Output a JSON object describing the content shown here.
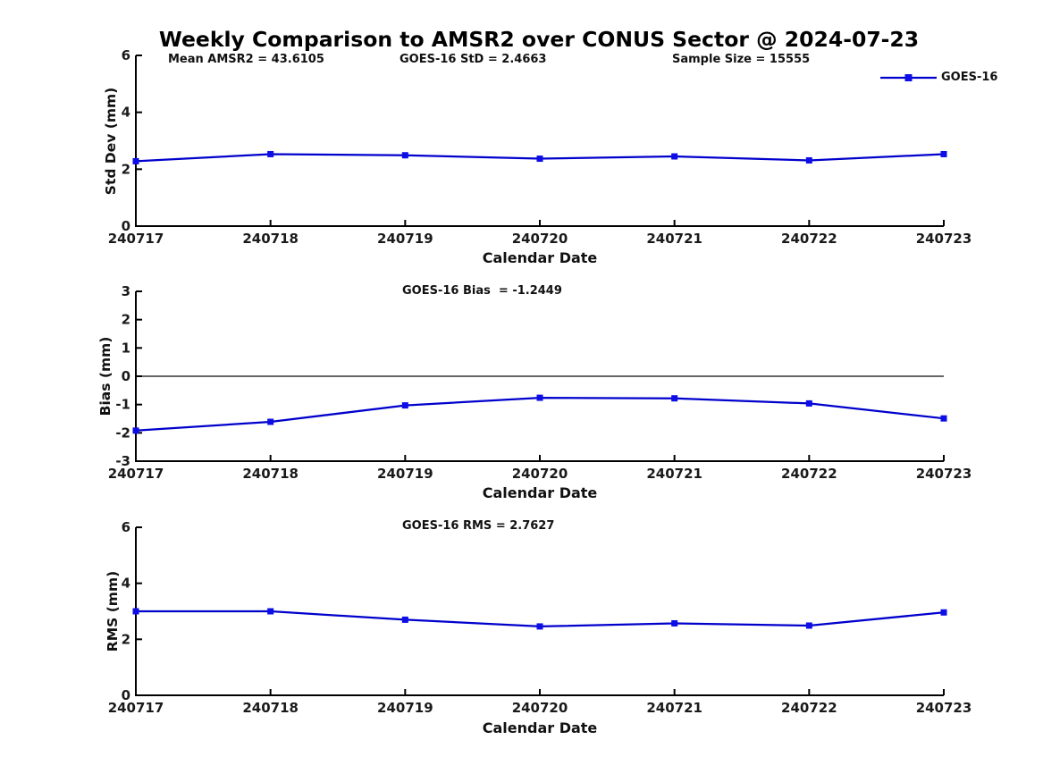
{
  "title": "Weekly Comparison to AMSR2 over CONUS Sector @ 2024-07-23",
  "legend": {
    "label": "GOES-16",
    "position": "top-right"
  },
  "colors": {
    "line": "#0000cc",
    "marker": "#0d0de8",
    "axis": "#000000",
    "zero_line": "#666666",
    "text": "#1a1a1a",
    "background": "#ffffff"
  },
  "chart_data": [
    {
      "type": "line",
      "name": "std-dev-subplot",
      "ylabel": "Std Dev (mm)",
      "xlabel": "Calendar Date",
      "ylim": [
        0,
        6
      ],
      "yticks": [
        0,
        2,
        4,
        6
      ],
      "grid": false,
      "categories": [
        "240717",
        "240718",
        "240719",
        "240720",
        "240721",
        "240722",
        "240723"
      ],
      "annotations": [
        "Mean AMSR2 = 43.6105",
        "GOES-16 StD = 2.4663",
        "Sample Size = 15555"
      ],
      "series": [
        {
          "name": "GOES-16",
          "values": [
            2.28,
            2.53,
            2.49,
            2.37,
            2.45,
            2.31,
            2.53
          ]
        }
      ]
    },
    {
      "type": "line",
      "name": "bias-subplot",
      "ylabel": "Bias (mm)",
      "xlabel": "Calendar Date",
      "ylim": [
        -3,
        3
      ],
      "yticks": [
        -3,
        -2,
        -1,
        0,
        1,
        2,
        3
      ],
      "zero_line": true,
      "grid": false,
      "categories": [
        "240717",
        "240718",
        "240719",
        "240720",
        "240721",
        "240722",
        "240723"
      ],
      "annotations": [
        "GOES-16 Bias  = -1.2449"
      ],
      "series": [
        {
          "name": "GOES-16",
          "values": [
            -1.92,
            -1.61,
            -1.03,
            -0.76,
            -0.78,
            -0.96,
            -1.49
          ]
        }
      ]
    },
    {
      "type": "line",
      "name": "rms-subplot",
      "ylabel": "RMS (mm)",
      "xlabel": "Calendar Date",
      "ylim": [
        0,
        6
      ],
      "yticks": [
        0,
        2,
        4,
        6
      ],
      "grid": false,
      "categories": [
        "240717",
        "240718",
        "240719",
        "240720",
        "240721",
        "240722",
        "240723"
      ],
      "annotations": [
        "GOES-16 RMS = 2.7627"
      ],
      "series": [
        {
          "name": "GOES-16",
          "values": [
            3.0,
            3.0,
            2.7,
            2.46,
            2.57,
            2.49,
            2.96
          ]
        }
      ]
    }
  ]
}
